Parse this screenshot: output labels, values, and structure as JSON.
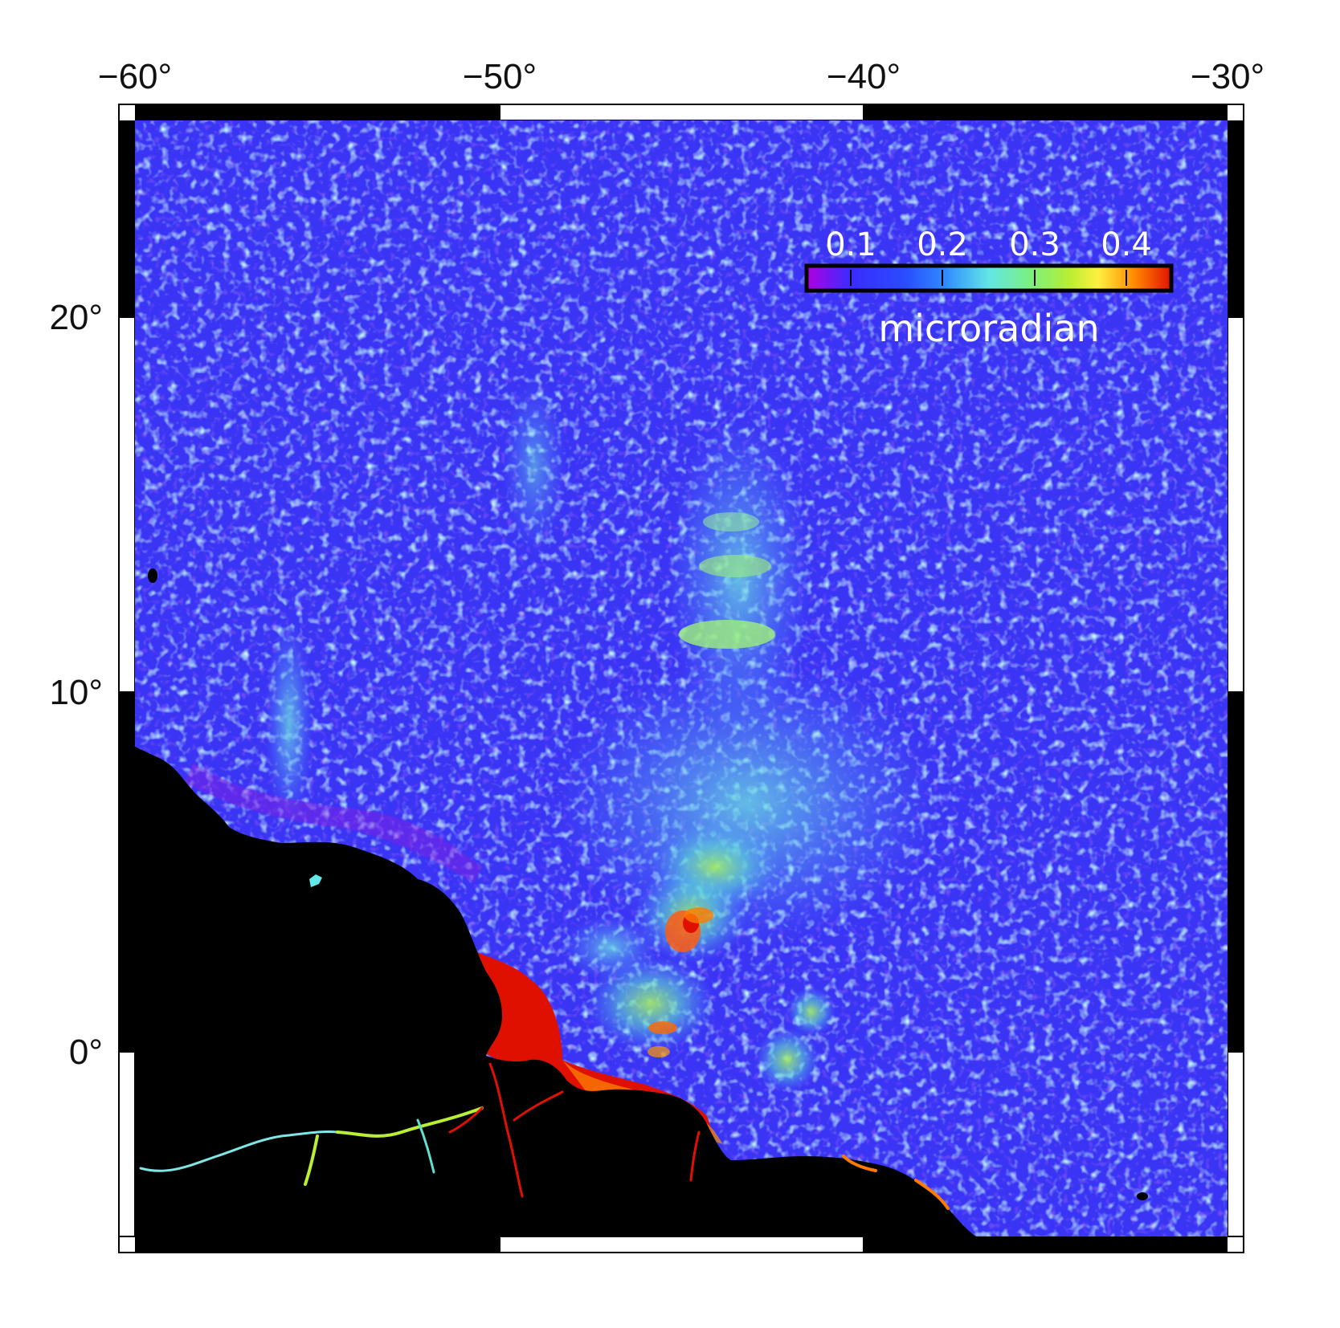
{
  "map": {
    "lon_ticks": [
      "−60°",
      "−50°",
      "−40°",
      "−30°"
    ],
    "lat_ticks": [
      "20°",
      "10°",
      "0°"
    ],
    "lon_range": [
      -60,
      -30
    ],
    "lat_range": [
      -5,
      26
    ],
    "land_color": "#000000",
    "ocean_colormap": "rainbow (purple-blue-cyan-green-yellow-red)"
  },
  "colorbar": {
    "tick_labels": [
      "0.1",
      "0.2",
      "0.3",
      "0.4"
    ],
    "title": "microradian",
    "colors": [
      "#b000e0",
      "#3b2bff",
      "#2a4cff",
      "#2f8bff",
      "#63e6e6",
      "#7df07a",
      "#b8ee33",
      "#fff040",
      "#ff8800",
      "#e01000"
    ]
  }
}
